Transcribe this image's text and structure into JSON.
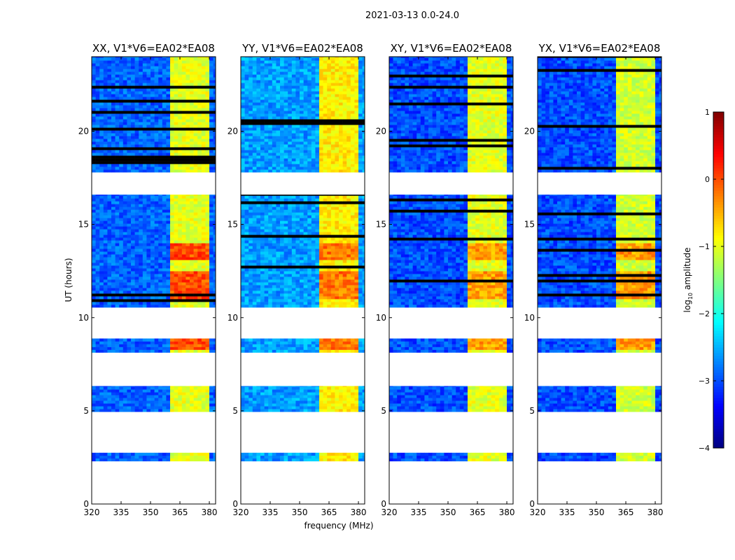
{
  "chart_data": {
    "type": "heatmap",
    "title": "2021-03-13 0.0-24.0",
    "xlabel": "frequency (MHz)",
    "ylabel": "UT (hours)",
    "xlim": [
      320,
      383.2
    ],
    "ylim": [
      0,
      24
    ],
    "xticks": [
      320,
      335,
      350,
      365,
      380
    ],
    "yticks": [
      0,
      5,
      10,
      15,
      20
    ],
    "colorbar": {
      "label": "log10 amplitude",
      "label_base": "log",
      "label_sub": "10",
      "label_rest": " amplitude",
      "range": [
        -4,
        1
      ],
      "ticks": [
        1,
        0,
        -1,
        -2,
        -3,
        -4
      ],
      "colormap": "jet"
    },
    "data_time_segments_hours": [
      [
        2.3,
        2.75
      ],
      [
        4.95,
        6.33
      ],
      [
        8.13,
        8.88
      ],
      [
        10.55,
        16.6
      ],
      [
        17.8,
        24.0
      ]
    ],
    "bright_band_mhz": [
      360,
      380
    ],
    "panels": [
      {
        "title": "XX, V1*V6=EA02*EA08",
        "background_log_amp": -2.9,
        "band_log_amp": -1.0,
        "peak_log_amp": 0.0
      },
      {
        "title": "YY, V1*V6=EA02*EA08",
        "background_log_amp": -2.6,
        "band_log_amp": -0.8,
        "peak_log_amp": -0.2
      },
      {
        "title": "XY, V1*V6=EA02*EA08",
        "background_log_amp": -3.0,
        "band_log_amp": -1.0,
        "peak_log_amp": -0.4
      },
      {
        "title": "YX, V1*V6=EA02*EA08",
        "background_log_amp": -3.0,
        "band_log_amp": -1.1,
        "peak_log_amp": -0.4
      }
    ]
  }
}
